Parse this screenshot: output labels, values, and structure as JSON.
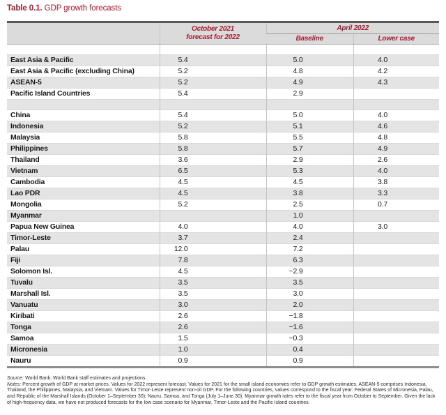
{
  "title": {
    "label": "Table 0.1.",
    "text": " GDP growth forecasts"
  },
  "colors": {
    "accent_red": "#A51C30",
    "header_bg": "#dbdbdb",
    "stripe_bg": "#e4e4e4",
    "top_rule": "#57585a",
    "bottom_rule": "#8c8c8c"
  },
  "table": {
    "header": {
      "oct_line1": "October 2021",
      "oct_line2": "forecast for 2022",
      "april_group": "April 2022",
      "baseline": "Baseline",
      "lower": "Lower case"
    },
    "rows": [
      {
        "spacer": true,
        "label": "",
        "values": [
          "",
          "",
          ""
        ]
      },
      {
        "label": "East Asia & Pacific",
        "values": [
          "5.4",
          "5.0",
          "4.0"
        ]
      },
      {
        "label": "East Asia & Pacific (excluding China)",
        "values": [
          "5.2",
          "4.8",
          "4.2"
        ]
      },
      {
        "label": "ASEAN-5",
        "values": [
          "5.2",
          "4.9",
          "4.3"
        ]
      },
      {
        "label": "Pacific Island Countries",
        "values": [
          "5.4",
          "2.9",
          ""
        ]
      },
      {
        "spacer": true,
        "label": "",
        "values": [
          "",
          "",
          ""
        ]
      },
      {
        "label": "China",
        "values": [
          "5.4",
          "5.0",
          "4.0"
        ]
      },
      {
        "label": "Indonesia",
        "values": [
          "5.2",
          "5.1",
          "4.6"
        ]
      },
      {
        "label": "Malaysia",
        "values": [
          "5.8",
          "5.5",
          "4.8"
        ]
      },
      {
        "label": "Philippines",
        "values": [
          "5.8",
          "5.7",
          "4.9"
        ]
      },
      {
        "label": "Thailand",
        "values": [
          "3.6",
          "2.9",
          "2.6"
        ]
      },
      {
        "label": "Vietnam",
        "values": [
          "6.5",
          "5.3",
          "4.0"
        ]
      },
      {
        "label": "Cambodia",
        "values": [
          "4.5",
          "4.5",
          "3.8"
        ]
      },
      {
        "label": "Lao PDR",
        "values": [
          "4.5",
          "3.8",
          "3.3"
        ]
      },
      {
        "label": "Mongolia",
        "values": [
          "5.2",
          "2.5",
          "0.7"
        ]
      },
      {
        "label": "Myanmar",
        "values": [
          "",
          "1.0",
          ""
        ]
      },
      {
        "label": "Papua New Guinea",
        "values": [
          "4.0",
          "4.0",
          "3.0"
        ]
      },
      {
        "label": "Timor-Leste",
        "values": [
          "3.7",
          "2.4",
          ""
        ]
      },
      {
        "label": "Palau",
        "values": [
          "12.0",
          "7.2",
          ""
        ]
      },
      {
        "label": "Fiji",
        "values": [
          "7.8",
          "6.3",
          ""
        ]
      },
      {
        "label": "Solomon Isl.",
        "values": [
          "4.5",
          "−2.9",
          ""
        ]
      },
      {
        "label": "Tuvalu",
        "values": [
          "3.5",
          "3.5",
          ""
        ]
      },
      {
        "label": "Marshall Isl.",
        "values": [
          "3.5",
          "3.0",
          ""
        ]
      },
      {
        "label": "Vanuatu",
        "values": [
          "3.0",
          "2.0",
          ""
        ]
      },
      {
        "label": "Kiribati",
        "values": [
          "2.6",
          "−1.8",
          ""
        ]
      },
      {
        "label": "Tonga",
        "values": [
          "2.6",
          "−1.6",
          ""
        ]
      },
      {
        "label": "Samoa",
        "values": [
          "1.5",
          "−0.3",
          ""
        ]
      },
      {
        "label": "Micronesia",
        "values": [
          "1.0",
          "0.4",
          ""
        ]
      },
      {
        "label": "Nauru",
        "values": [
          "0.9",
          "0.9",
          ""
        ]
      }
    ]
  },
  "footnotes": {
    "source_label": "Source:",
    "source_text": " World Bank; World Bank staff estimates and projections.",
    "notes_label": "Notes:",
    "notes_text": " Percent growth of GDP at market prices. Values for 2022 represent forecast. Values for 2021 for the small island economies refer to GDP growth estimates. ASEAN-5 comprises Indonesia, Thailand, the Philippines, Malaysia, and Vietnam. Values for Timor-Leste represent non-oil GDP. For the following countries, values correspond to the fiscal year: Federal States of Micronesia, Palau, and Republic of the Marshall Islands (October 1–September 30); Nauru, Samoa, and Tonga (July 1–June 30). Myanmar growth rates refer to the fiscal year from October to September. Given the lack of high-frequency data, we have not produced forecasts for the low case scenario for Myanmar, Timor-Leste and the Pacific Island countries."
  }
}
